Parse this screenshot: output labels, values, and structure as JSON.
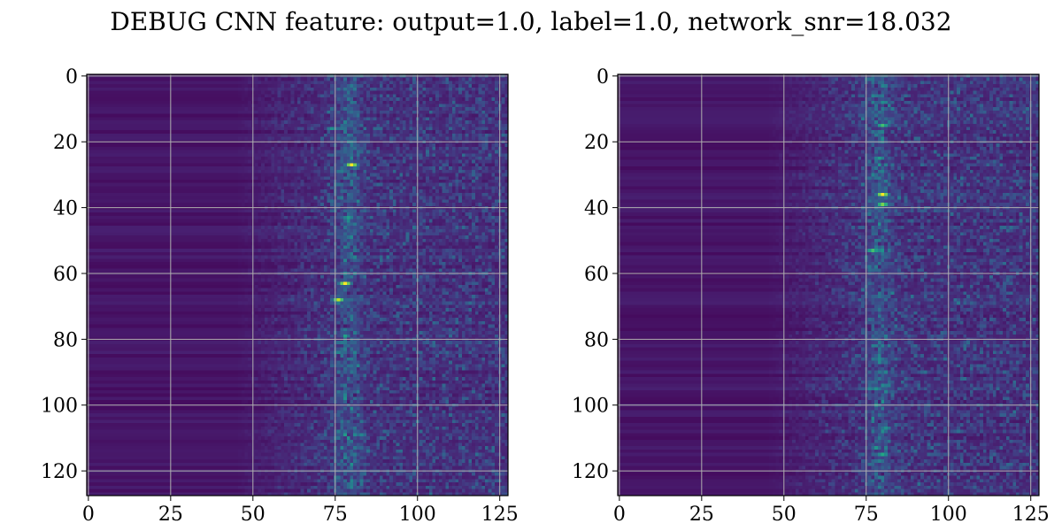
{
  "figure": {
    "title": "DEBUG CNN feature: output=1.0, label=1.0, network_snr=18.032"
  },
  "chart_data": [
    {
      "type": "heatmap",
      "colormap": "viridis",
      "grid": true,
      "grid_color": "#b0b0b0",
      "xlim": [
        -0.5,
        127.5
      ],
      "ylim": [
        127.5,
        -0.5
      ],
      "x_ticks": [
        0,
        25,
        50,
        75,
        100,
        125
      ],
      "x_tick_labels": [
        "0",
        "25",
        "50",
        "75",
        "100",
        "125"
      ],
      "y_ticks": [
        0,
        20,
        40,
        60,
        80,
        100,
        120
      ],
      "y_tick_labels": [
        "0",
        "20",
        "40",
        "60",
        "80",
        "100",
        "120"
      ],
      "shape": [
        128,
        128
      ],
      "value_range": [
        0,
        1
      ],
      "description_of_structure": "left ~half near-uniform dark purple with faint horizontal row stripes; noisy texture from column ~50 onward; bright vertical band around columns 75-82",
      "hotspots": [
        {
          "row": 27,
          "col": 80,
          "value": 1.0
        },
        {
          "row": 63,
          "col": 78,
          "value": 1.0
        },
        {
          "row": 68,
          "col": 76,
          "value": 0.9
        },
        {
          "row": 43,
          "col": 79,
          "value": 0.55
        },
        {
          "row": 16,
          "col": 74,
          "value": 0.5
        },
        {
          "row": 109,
          "col": 83,
          "value": 0.45
        },
        {
          "row": 3,
          "col": 80,
          "value": 0.4
        },
        {
          "row": 86,
          "col": 80,
          "value": 0.4
        }
      ]
    },
    {
      "type": "heatmap",
      "colormap": "viridis",
      "grid": true,
      "grid_color": "#b0b0b0",
      "xlim": [
        -0.5,
        127.5
      ],
      "ylim": [
        127.5,
        -0.5
      ],
      "x_ticks": [
        0,
        25,
        50,
        75,
        100,
        125
      ],
      "x_tick_labels": [
        "0",
        "25",
        "50",
        "75",
        "100",
        "125"
      ],
      "y_ticks": [
        0,
        20,
        40,
        60,
        80,
        100,
        120
      ],
      "y_tick_labels": [
        "0",
        "20",
        "40",
        "60",
        "80",
        "100",
        "120"
      ],
      "shape": [
        128,
        128
      ],
      "value_range": [
        0,
        1
      ],
      "description_of_structure": "left ~half near-uniform dark purple with faint horizontal row stripes; noisy texture from column ~45 onward; bright vertical band around columns 78-82",
      "hotspots": [
        {
          "row": 36,
          "col": 80,
          "value": 1.0
        },
        {
          "row": 39,
          "col": 80,
          "value": 0.8
        },
        {
          "row": 15,
          "col": 80,
          "value": 0.7
        },
        {
          "row": 53,
          "col": 77,
          "value": 0.7
        },
        {
          "row": 115,
          "col": 80,
          "value": 0.6
        },
        {
          "row": 25,
          "col": 79,
          "value": 0.55
        },
        {
          "row": 95,
          "col": 78,
          "value": 0.5
        },
        {
          "row": 107,
          "col": 81,
          "value": 0.5
        }
      ]
    }
  ]
}
